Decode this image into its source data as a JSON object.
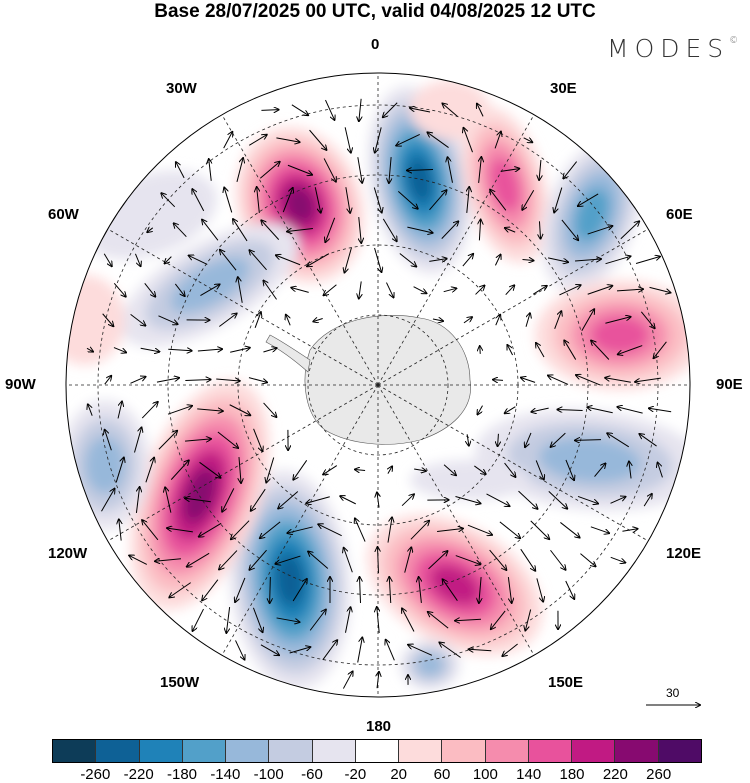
{
  "title": "Base 28/07/2025 00 UTC, valid 04/08/2025 12 UTC",
  "logo": {
    "text": "MODES",
    "mark": "©"
  },
  "longitude_labels": {
    "n": "0",
    "ne30": "30E",
    "ne60": "60E",
    "e": "90E",
    "se120": "120E",
    "se150": "150E",
    "s": "180",
    "sw150": "150W",
    "sw120": "120W",
    "w": "90W",
    "nw60": "60W",
    "nw30": "30W"
  },
  "reference_vector": {
    "label": "30"
  },
  "colorbar": {
    "ticks": [
      "-260",
      "-220",
      "-180",
      "-140",
      "-100",
      "-60",
      "-20",
      "20",
      "60",
      "100",
      "140",
      "180",
      "220",
      "260"
    ],
    "colors": [
      "#0d3c58",
      "#0e6196",
      "#1f82b8",
      "#52a0c9",
      "#97b8da",
      "#c4cce1",
      "#e6e4ef",
      "#ffffff",
      "#fddcdc",
      "#fbbcc2",
      "#f58cad",
      "#e8529c",
      "#c11a83",
      "#870a70",
      "#4f0b66"
    ]
  }
}
